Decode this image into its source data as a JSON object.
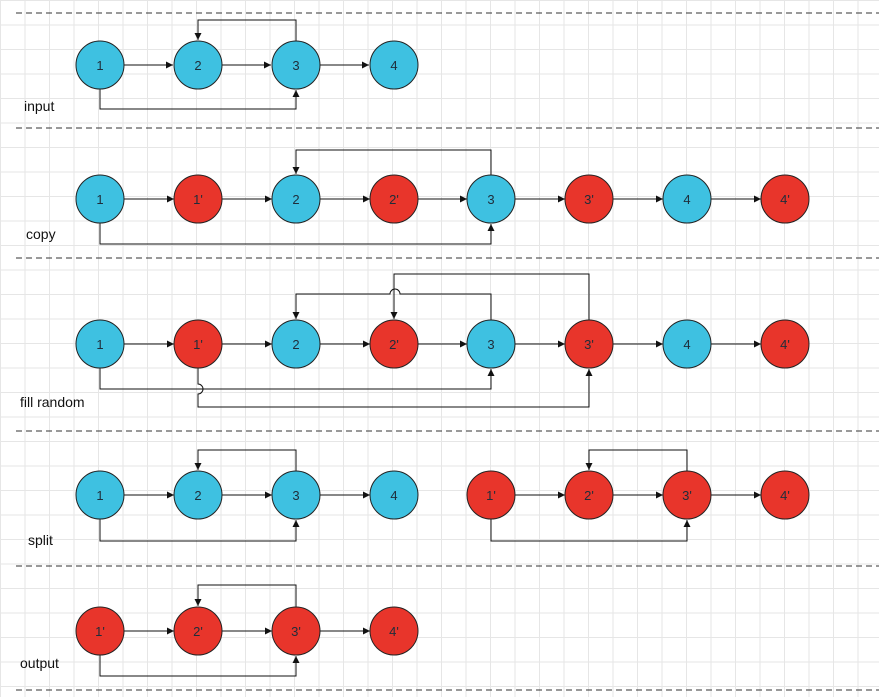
{
  "colors": {
    "original": "#3ec1e1",
    "copy": "#e8352b",
    "stroke": "#222222",
    "divider": "#333333"
  },
  "stages": [
    {
      "id": "input",
      "label": "input",
      "nodes": [
        {
          "id": "a1",
          "text": "1",
          "kind": "original"
        },
        {
          "id": "a2",
          "text": "2",
          "kind": "original"
        },
        {
          "id": "a3",
          "text": "3",
          "kind": "original"
        },
        {
          "id": "a4",
          "text": "4",
          "kind": "original"
        }
      ]
    },
    {
      "id": "copy",
      "label": "copy",
      "nodes": [
        {
          "id": "b1",
          "text": "1",
          "kind": "original"
        },
        {
          "id": "b1p",
          "text": "1'",
          "kind": "copy"
        },
        {
          "id": "b2",
          "text": "2",
          "kind": "original"
        },
        {
          "id": "b2p",
          "text": "2'",
          "kind": "copy"
        },
        {
          "id": "b3",
          "text": "3",
          "kind": "original"
        },
        {
          "id": "b3p",
          "text": "3'",
          "kind": "copy"
        },
        {
          "id": "b4",
          "text": "4",
          "kind": "original"
        },
        {
          "id": "b4p",
          "text": "4'",
          "kind": "copy"
        }
      ]
    },
    {
      "id": "fill-random",
      "label": "fill random",
      "nodes": [
        {
          "id": "c1",
          "text": "1",
          "kind": "original"
        },
        {
          "id": "c1p",
          "text": "1'",
          "kind": "copy"
        },
        {
          "id": "c2",
          "text": "2",
          "kind": "original"
        },
        {
          "id": "c2p",
          "text": "2'",
          "kind": "copy"
        },
        {
          "id": "c3",
          "text": "3",
          "kind": "original"
        },
        {
          "id": "c3p",
          "text": "3'",
          "kind": "copy"
        },
        {
          "id": "c4",
          "text": "4",
          "kind": "original"
        },
        {
          "id": "c4p",
          "text": "4'",
          "kind": "copy"
        }
      ]
    },
    {
      "id": "split",
      "label": "split",
      "nodes": [
        {
          "id": "d1",
          "text": "1",
          "kind": "original"
        },
        {
          "id": "d2",
          "text": "2",
          "kind": "original"
        },
        {
          "id": "d3",
          "text": "3",
          "kind": "original"
        },
        {
          "id": "d4",
          "text": "4",
          "kind": "original"
        },
        {
          "id": "d1p",
          "text": "1'",
          "kind": "copy"
        },
        {
          "id": "d2p",
          "text": "2'",
          "kind": "copy"
        },
        {
          "id": "d3p",
          "text": "3'",
          "kind": "copy"
        },
        {
          "id": "d4p",
          "text": "4'",
          "kind": "copy"
        }
      ]
    },
    {
      "id": "output",
      "label": "output",
      "nodes": [
        {
          "id": "e1p",
          "text": "1'",
          "kind": "copy"
        },
        {
          "id": "e2p",
          "text": "2'",
          "kind": "copy"
        },
        {
          "id": "e3p",
          "text": "3'",
          "kind": "copy"
        },
        {
          "id": "e4p",
          "text": "4'",
          "kind": "copy"
        }
      ]
    }
  ]
}
